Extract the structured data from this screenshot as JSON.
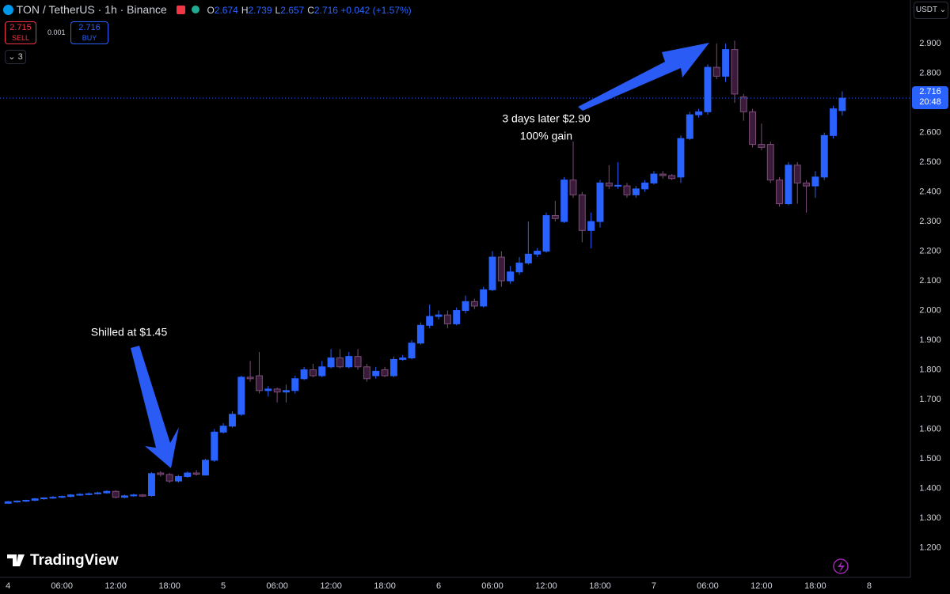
{
  "header": {
    "symbol": "TON / TetherUS · 1h · Binance",
    "ohlc": [
      {
        "label": "O",
        "value": "2.674"
      },
      {
        "label": "H",
        "value": "2.739"
      },
      {
        "label": "L",
        "value": "2.657"
      },
      {
        "label": "C",
        "value": "2.716"
      }
    ],
    "change": "+0.042 (+1.57%)",
    "sell_price": "2.715",
    "sell_label": "SELL",
    "spread": "0.001",
    "buy_price": "2.716",
    "buy_label": "BUY",
    "indicators": "3",
    "currency": "USDT"
  },
  "chart_data": {
    "type": "candlestick",
    "x": [
      0,
      1,
      2,
      3,
      4,
      5,
      6,
      7,
      8,
      9,
      10,
      11,
      12,
      13,
      14,
      15,
      16,
      17,
      18,
      19,
      20,
      21,
      22,
      23,
      24,
      25,
      26,
      27,
      28,
      29,
      30,
      31,
      32,
      33,
      34,
      35,
      36,
      37,
      38,
      39,
      40,
      41,
      42,
      43,
      44,
      45,
      46,
      47,
      48,
      49,
      50,
      51,
      52,
      53,
      54,
      55,
      56,
      57,
      58,
      59,
      60,
      61,
      62,
      63,
      64,
      65,
      66,
      67,
      68,
      69,
      70,
      71,
      72,
      73,
      74,
      75,
      76,
      77,
      78,
      79,
      80,
      81,
      82,
      83,
      84,
      85,
      86,
      87,
      88,
      89,
      90,
      91,
      92,
      93
    ],
    "open": [
      1.35,
      1.355,
      1.357,
      1.36,
      1.365,
      1.368,
      1.37,
      1.373,
      1.378,
      1.38,
      1.382,
      1.385,
      1.39,
      1.37,
      1.375,
      1.378,
      1.376,
      1.452,
      1.447,
      1.425,
      1.44,
      1.452,
      1.445,
      1.495,
      1.59,
      1.61,
      1.65,
      1.775,
      1.78,
      1.73,
      1.735,
      1.725,
      1.73,
      1.77,
      1.8,
      1.78,
      1.81,
      1.84,
      1.81,
      1.845,
      1.81,
      1.78,
      1.8,
      1.78,
      1.835,
      1.84,
      1.89,
      1.95,
      1.98,
      1.985,
      1.955,
      2.0,
      2.03,
      2.015,
      2.07,
      2.18,
      2.1,
      2.13,
      2.16,
      2.19,
      2.2,
      2.32,
      2.3,
      2.44,
      2.39,
      2.27,
      2.3,
      2.43,
      2.42,
      2.42,
      2.39,
      2.41,
      2.43,
      2.46,
      2.455,
      2.45,
      2.58,
      2.66,
      2.67,
      2.82,
      2.79,
      2.88,
      2.72,
      2.67,
      2.56,
      2.56,
      2.44,
      2.36,
      2.49,
      2.43,
      2.42,
      2.45,
      2.59,
      2.674
    ],
    "high": [
      1.358,
      1.36,
      1.362,
      1.368,
      1.37,
      1.374,
      1.376,
      1.381,
      1.384,
      1.386,
      1.389,
      1.394,
      1.394,
      1.379,
      1.382,
      1.381,
      1.455,
      1.458,
      1.452,
      1.445,
      1.457,
      1.462,
      1.5,
      1.6,
      1.62,
      1.66,
      1.78,
      1.83,
      1.86,
      1.745,
      1.74,
      1.75,
      1.78,
      1.81,
      1.82,
      1.83,
      1.87,
      1.87,
      1.86,
      1.87,
      1.82,
      1.81,
      1.81,
      1.845,
      1.85,
      1.9,
      1.96,
      2.02,
      2.0,
      2.0,
      2.01,
      2.05,
      2.04,
      2.08,
      2.2,
      2.2,
      2.15,
      2.18,
      2.3,
      2.21,
      2.33,
      2.37,
      2.45,
      2.57,
      2.4,
      2.33,
      2.44,
      2.49,
      2.5,
      2.43,
      2.42,
      2.44,
      2.47,
      2.47,
      2.46,
      2.59,
      2.67,
      2.68,
      2.83,
      2.9,
      2.9,
      2.91,
      2.73,
      2.68,
      2.63,
      2.57,
      2.45,
      2.5,
      2.5,
      2.44,
      2.47,
      2.6,
      2.69,
      2.739
    ],
    "low": [
      1.348,
      1.352,
      1.354,
      1.357,
      1.362,
      1.365,
      1.367,
      1.37,
      1.375,
      1.377,
      1.379,
      1.382,
      1.366,
      1.367,
      1.372,
      1.371,
      1.372,
      1.44,
      1.418,
      1.42,
      1.436,
      1.443,
      1.443,
      1.49,
      1.585,
      1.605,
      1.645,
      1.76,
      1.72,
      1.71,
      1.69,
      1.69,
      1.72,
      1.765,
      1.775,
      1.775,
      1.805,
      1.805,
      1.805,
      1.8,
      1.76,
      1.77,
      1.775,
      1.775,
      1.83,
      1.835,
      1.885,
      1.94,
      1.97,
      1.94,
      1.95,
      1.99,
      2.005,
      2.01,
      2.065,
      2.08,
      2.09,
      2.12,
      2.155,
      2.18,
      2.195,
      2.3,
      2.295,
      2.38,
      2.23,
      2.21,
      2.28,
      2.41,
      2.41,
      2.38,
      2.38,
      2.4,
      2.425,
      2.445,
      2.44,
      2.43,
      2.575,
      2.65,
      2.66,
      2.78,
      2.77,
      2.7,
      2.64,
      2.55,
      2.54,
      2.43,
      2.35,
      2.355,
      2.36,
      2.33,
      2.38,
      2.44,
      2.58,
      2.657
    ],
    "close": [
      1.355,
      1.357,
      1.36,
      1.365,
      1.368,
      1.37,
      1.373,
      1.378,
      1.38,
      1.382,
      1.385,
      1.39,
      1.37,
      1.375,
      1.378,
      1.374,
      1.45,
      1.447,
      1.425,
      1.44,
      1.452,
      1.448,
      1.495,
      1.59,
      1.61,
      1.65,
      1.775,
      1.77,
      1.73,
      1.735,
      1.725,
      1.73,
      1.77,
      1.8,
      1.78,
      1.81,
      1.84,
      1.81,
      1.845,
      1.81,
      1.77,
      1.795,
      1.78,
      1.835,
      1.84,
      1.89,
      1.95,
      1.98,
      1.985,
      1.955,
      2.0,
      2.03,
      2.015,
      2.07,
      2.18,
      2.1,
      2.13,
      2.16,
      2.19,
      2.2,
      2.32,
      2.31,
      2.44,
      2.39,
      2.27,
      2.3,
      2.43,
      2.42,
      2.422,
      2.39,
      2.41,
      2.43,
      2.46,
      2.455,
      2.445,
      2.58,
      2.66,
      2.67,
      2.82,
      2.79,
      2.88,
      2.73,
      2.67,
      2.56,
      2.55,
      2.44,
      2.36,
      2.49,
      2.43,
      2.42,
      2.45,
      2.59,
      2.68,
      2.716
    ],
    "up_color": "#2962ff",
    "down_color": "#3a1c3a",
    "down_border": "#7e4d7b",
    "xlim": [
      -0.9,
      100.6
    ],
    "xticks": [
      {
        "value": 0,
        "label": "4"
      },
      {
        "value": 6,
        "label": "06:00"
      },
      {
        "value": 12,
        "label": "12:00"
      },
      {
        "value": 18,
        "label": "18:00"
      },
      {
        "value": 24,
        "label": "5"
      },
      {
        "value": 30,
        "label": "06:00"
      },
      {
        "value": 36,
        "label": "12:00"
      },
      {
        "value": 42,
        "label": "18:00"
      },
      {
        "value": 48,
        "label": "6"
      },
      {
        "value": 54,
        "label": "06:00"
      },
      {
        "value": 60,
        "label": "12:00"
      },
      {
        "value": 66,
        "label": "18:00"
      },
      {
        "value": 72,
        "label": "7"
      },
      {
        "value": 78,
        "label": "06:00"
      },
      {
        "value": 84,
        "label": "12:00"
      },
      {
        "value": 90,
        "label": "18:00"
      },
      {
        "value": 96,
        "label": "8"
      }
    ],
    "ylim": [
      1.1,
      3.047
    ],
    "yticks": [
      {
        "value": 1.2,
        "label": "1.200"
      },
      {
        "value": 1.3,
        "label": "1.300"
      },
      {
        "value": 1.4,
        "label": "1.400"
      },
      {
        "value": 1.5,
        "label": "1.500"
      },
      {
        "value": 1.6,
        "label": "1.600"
      },
      {
        "value": 1.7,
        "label": "1.700"
      },
      {
        "value": 1.8,
        "label": "1.800"
      },
      {
        "value": 1.9,
        "label": "1.900"
      },
      {
        "value": 2.0,
        "label": "2.000"
      },
      {
        "value": 2.1,
        "label": "2.100"
      },
      {
        "value": 2.2,
        "label": "2.200"
      },
      {
        "value": 2.3,
        "label": "2.300"
      },
      {
        "value": 2.4,
        "label": "2.400"
      },
      {
        "value": 2.5,
        "label": "2.500"
      },
      {
        "value": 2.6,
        "label": "2.600"
      },
      {
        "value": 2.7,
        "label": "2.700"
      },
      {
        "value": 2.8,
        "label": "2.800"
      },
      {
        "value": 2.9,
        "label": "2.900"
      }
    ],
    "last_price_label": "2.716",
    "countdown": "20:48",
    "annotations": [
      "Shilled at $1.45",
      "3 days later $2.90",
      "100% gain"
    ]
  },
  "branding": "TradingView"
}
